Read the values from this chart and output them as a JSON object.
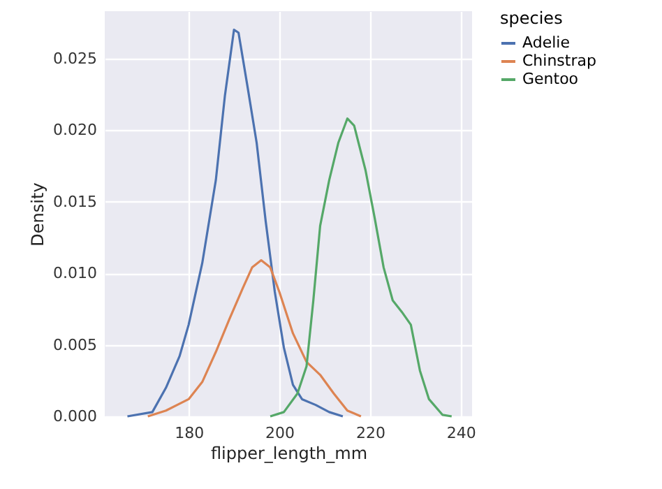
{
  "chart_data": {
    "type": "line",
    "xlabel": "flipper_length_mm",
    "ylabel": "Density",
    "legend_title": "species",
    "legend": "right",
    "grid": true,
    "line_style": "solid",
    "marker": "none",
    "xlim": [
      161.5,
      242.5
    ],
    "xticks": [
      180,
      200,
      220,
      240
    ],
    "ylim": [
      0,
      0.0283
    ],
    "yticks": [
      {
        "value": 0,
        "label": "0.000"
      },
      {
        "value": 0.005,
        "label": "0.005"
      },
      {
        "value": 0.01,
        "label": "0.010"
      },
      {
        "value": 0.015,
        "label": "0.015"
      },
      {
        "value": 0.02,
        "label": "0.020"
      },
      {
        "value": 0.025,
        "label": "0.025"
      }
    ],
    "series": [
      {
        "name": "Adelie",
        "color": "#4c72b0",
        "x": [
          166.5,
          172,
          175,
          178,
          180,
          183,
          186,
          188,
          190,
          191,
          193,
          195,
          197,
          199,
          201,
          203,
          205,
          208,
          211,
          214
        ],
        "values": [
          0,
          0.0003,
          0.002,
          0.0042,
          0.0064,
          0.0107,
          0.0165,
          0.0224,
          0.027,
          0.0268,
          0.023,
          0.0191,
          0.0136,
          0.0087,
          0.0048,
          0.0022,
          0.0012,
          0.0008,
          0.0003,
          0
        ]
      },
      {
        "name": "Chinstrap",
        "color": "#dd8452",
        "x": [
          171,
          175,
          180,
          183,
          186,
          189,
          192,
          194,
          196,
          198,
          200,
          203,
          206,
          209,
          212,
          215,
          218
        ],
        "values": [
          0,
          0.0004,
          0.0012,
          0.0024,
          0.0045,
          0.0068,
          0.009,
          0.0104,
          0.0109,
          0.0104,
          0.0087,
          0.0058,
          0.0038,
          0.0029,
          0.0016,
          0.0004,
          0
        ]
      },
      {
        "name": "Gentoo",
        "color": "#55a868",
        "x": [
          198,
          201,
          204,
          206,
          207.5,
          209,
          211,
          213,
          215,
          216.5,
          219,
          221,
          223,
          225,
          227,
          229,
          231,
          233,
          236,
          238
        ],
        "values": [
          0,
          0.0003,
          0.0016,
          0.0035,
          0.0081,
          0.0133,
          0.0165,
          0.0191,
          0.0208,
          0.0203,
          0.0172,
          0.0139,
          0.0104,
          0.0081,
          0.0073,
          0.0064,
          0.0032,
          0.0012,
          0.0001,
          0
        ]
      }
    ]
  }
}
